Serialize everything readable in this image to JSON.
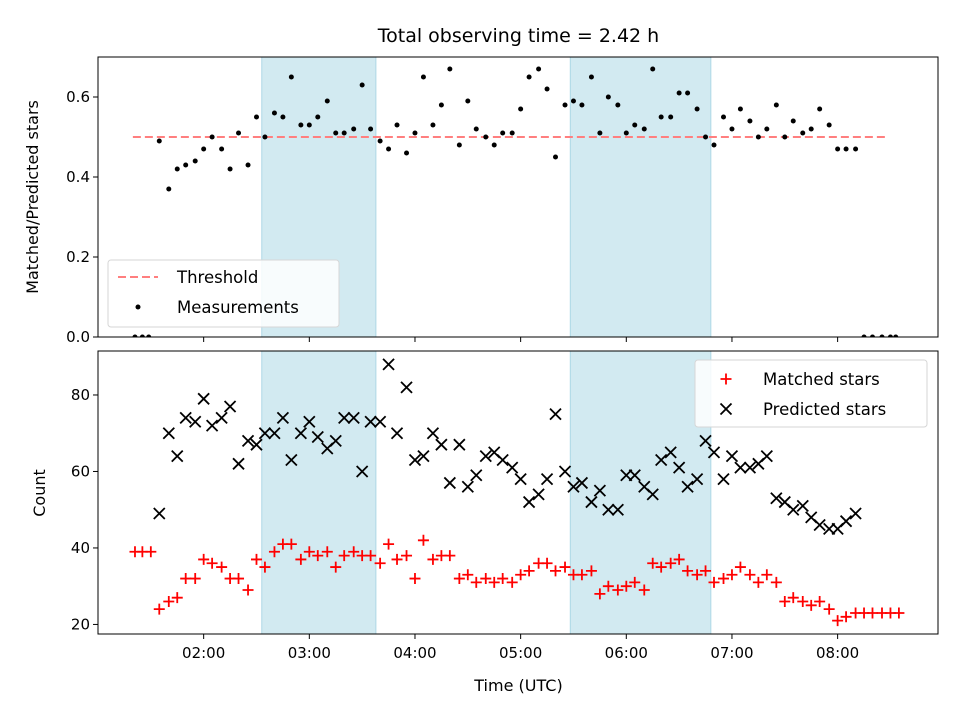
{
  "chart_data": [
    {
      "type": "scatter",
      "title": "Total observing time = 2.42 h",
      "ylabel": "Matched/Predicted stars",
      "xlabel": "",
      "ylim": [
        0.0,
        0.7
      ],
      "yticks": [
        0.0,
        0.2,
        0.4,
        0.6
      ],
      "ytick_labels": [
        "0.0",
        "0.2",
        "0.4",
        "0.6"
      ],
      "xlim_hours": [
        1.0,
        8.95
      ],
      "shaded_intervals_hours": [
        [
          2.55,
          3.63
        ],
        [
          5.47,
          6.8
        ]
      ],
      "shade_color": "#add8e6",
      "legend": {
        "placement": "lower-left",
        "entries": [
          "Threshold",
          "Measurements"
        ]
      },
      "series": [
        {
          "name": "Threshold",
          "kind": "dashed-line",
          "color": "#ff7f7f",
          "x": [
            1.33,
            8.47
          ],
          "y": [
            0.5,
            0.5
          ]
        },
        {
          "name": "Measurements",
          "kind": "dots",
          "color": "#000000",
          "x": [
            1.35,
            1.42,
            1.48,
            1.58,
            1.67,
            1.75,
            1.83,
            1.92,
            2.0,
            2.08,
            2.17,
            2.25,
            2.33,
            2.42,
            2.5,
            2.58,
            2.67,
            2.75,
            2.83,
            2.92,
            3.0,
            3.08,
            3.17,
            3.25,
            3.33,
            3.42,
            3.5,
            3.58,
            3.67,
            3.75,
            3.83,
            3.92,
            4.0,
            4.08,
            4.17,
            4.25,
            4.33,
            4.42,
            4.5,
            4.58,
            4.67,
            4.75,
            4.83,
            4.92,
            5.0,
            5.08,
            5.17,
            5.25,
            5.33,
            5.42,
            5.5,
            5.58,
            5.67,
            5.75,
            5.83,
            5.92,
            6.0,
            6.08,
            6.17,
            6.25,
            6.33,
            6.42,
            6.5,
            6.58,
            6.67,
            6.75,
            6.83,
            6.92,
            7.0,
            7.08,
            7.17,
            7.25,
            7.33,
            7.42,
            7.5,
            7.58,
            7.67,
            7.75,
            7.83,
            7.92,
            8.0,
            8.08,
            8.17,
            8.25,
            8.33,
            8.42,
            8.5,
            8.55
          ],
          "y": [
            0.0,
            0.0,
            0.0,
            0.49,
            0.37,
            0.42,
            0.43,
            0.44,
            0.47,
            0.5,
            0.47,
            0.42,
            0.51,
            0.43,
            0.55,
            0.5,
            0.56,
            0.55,
            0.65,
            0.53,
            0.53,
            0.55,
            0.59,
            0.51,
            0.51,
            0.52,
            0.63,
            0.52,
            0.49,
            0.47,
            0.53,
            0.46,
            0.51,
            0.65,
            0.53,
            0.58,
            0.67,
            0.48,
            0.59,
            0.52,
            0.5,
            0.48,
            0.51,
            0.51,
            0.57,
            0.65,
            0.67,
            0.62,
            0.45,
            0.58,
            0.59,
            0.58,
            0.65,
            0.51,
            0.6,
            0.58,
            0.51,
            0.53,
            0.52,
            0.67,
            0.55,
            0.55,
            0.61,
            0.61,
            0.57,
            0.5,
            0.48,
            0.55,
            0.52,
            0.57,
            0.54,
            0.5,
            0.52,
            0.58,
            0.5,
            0.54,
            0.51,
            0.52,
            0.57,
            0.53,
            0.47,
            0.47,
            0.47,
            0.0,
            0.0,
            0.0,
            0.0,
            0.0
          ]
        }
      ]
    },
    {
      "type": "scatter",
      "title": "",
      "ylabel": "Count",
      "xlabel": "Time (UTC)",
      "ylim": [
        17.5,
        91.5
      ],
      "yticks": [
        20,
        40,
        60,
        80
      ],
      "ytick_labels": [
        "20",
        "40",
        "60",
        "80"
      ],
      "xlim_hours": [
        1.0,
        8.95
      ],
      "xticks_hours": [
        2,
        3,
        4,
        5,
        6,
        7,
        8
      ],
      "xtick_labels": [
        "02:00",
        "03:00",
        "04:00",
        "05:00",
        "06:00",
        "07:00",
        "08:00"
      ],
      "shaded_intervals_hours": [
        [
          2.55,
          3.63
        ],
        [
          5.47,
          6.8
        ]
      ],
      "shade_color": "#add8e6",
      "legend": {
        "placement": "top-right",
        "entries": [
          "Matched stars",
          "Predicted stars"
        ]
      },
      "series": [
        {
          "name": "Matched stars",
          "marker": "plus",
          "color": "#ff0000",
          "x": [
            1.35,
            1.42,
            1.5,
            1.58,
            1.67,
            1.75,
            1.83,
            1.92,
            2.0,
            2.08,
            2.17,
            2.25,
            2.33,
            2.42,
            2.5,
            2.58,
            2.67,
            2.75,
            2.83,
            2.92,
            3.0,
            3.08,
            3.17,
            3.25,
            3.33,
            3.42,
            3.5,
            3.58,
            3.67,
            3.75,
            3.83,
            3.92,
            4.0,
            4.08,
            4.17,
            4.25,
            4.33,
            4.42,
            4.5,
            4.58,
            4.67,
            4.75,
            4.83,
            4.92,
            5.0,
            5.08,
            5.17,
            5.25,
            5.33,
            5.42,
            5.5,
            5.58,
            5.67,
            5.75,
            5.83,
            5.92,
            6.0,
            6.08,
            6.17,
            6.25,
            6.33,
            6.42,
            6.5,
            6.58,
            6.67,
            6.75,
            6.83,
            6.92,
            7.0,
            7.08,
            7.17,
            7.25,
            7.33,
            7.42,
            7.5,
            7.58,
            7.67,
            7.75,
            7.83,
            7.92,
            8.0,
            8.08,
            8.17,
            8.25,
            8.33,
            8.42,
            8.5,
            8.58
          ],
          "y": [
            39,
            39,
            39,
            24,
            26,
            27,
            32,
            32,
            37,
            36,
            35,
            32,
            32,
            29,
            37,
            35,
            39,
            41,
            41,
            37,
            39,
            38,
            39,
            35,
            38,
            39,
            38,
            38,
            36,
            41,
            37,
            38,
            32,
            42,
            37,
            38,
            38,
            32,
            33,
            31,
            32,
            31,
            32,
            31,
            33,
            34,
            36,
            36,
            34,
            35,
            33,
            33,
            34,
            28,
            30,
            29,
            30,
            31,
            29,
            36,
            35,
            36,
            37,
            34,
            33,
            34,
            31,
            32,
            33,
            35,
            33,
            31,
            33,
            31,
            26,
            27,
            26,
            25,
            26,
            24,
            21,
            22,
            23,
            23,
            23,
            23,
            23,
            23
          ]
        },
        {
          "name": "Predicted stars",
          "marker": "x",
          "color": "#000000",
          "x": [
            1.58,
            1.67,
            1.75,
            1.83,
            1.92,
            2.0,
            2.08,
            2.17,
            2.25,
            2.33,
            2.42,
            2.5,
            2.58,
            2.67,
            2.75,
            2.83,
            2.92,
            3.0,
            3.08,
            3.17,
            3.25,
            3.33,
            3.42,
            3.5,
            3.58,
            3.67,
            3.75,
            3.83,
            3.92,
            4.0,
            4.08,
            4.17,
            4.25,
            4.33,
            4.42,
            4.5,
            4.58,
            4.67,
            4.75,
            4.83,
            4.92,
            5.0,
            5.08,
            5.17,
            5.25,
            5.33,
            5.42,
            5.5,
            5.58,
            5.67,
            5.75,
            5.83,
            5.92,
            6.0,
            6.08,
            6.17,
            6.25,
            6.33,
            6.42,
            6.5,
            6.58,
            6.67,
            6.75,
            6.83,
            6.92,
            7.0,
            7.08,
            7.17,
            7.25,
            7.33,
            7.42,
            7.5,
            7.58,
            7.67,
            7.75,
            7.83,
            7.92,
            8.0,
            8.08,
            8.17
          ],
          "y": [
            49,
            70,
            64,
            74,
            73,
            79,
            72,
            74,
            77,
            62,
            68,
            67,
            70,
            70,
            74,
            63,
            70,
            73,
            69,
            66,
            68,
            74,
            74,
            60,
            73,
            73,
            88,
            70,
            82,
            63,
            64,
            70,
            67,
            57,
            67,
            56,
            59,
            64,
            65,
            63,
            61,
            58,
            52,
            54,
            58,
            75,
            60,
            56,
            57,
            52,
            55,
            50,
            50,
            59,
            59,
            56,
            54,
            63,
            65,
            61,
            56,
            58,
            68,
            65,
            58,
            64,
            61,
            61,
            62,
            64,
            53,
            52,
            50,
            51,
            48,
            46,
            45,
            45,
            47,
            49
          ]
        }
      ]
    }
  ]
}
